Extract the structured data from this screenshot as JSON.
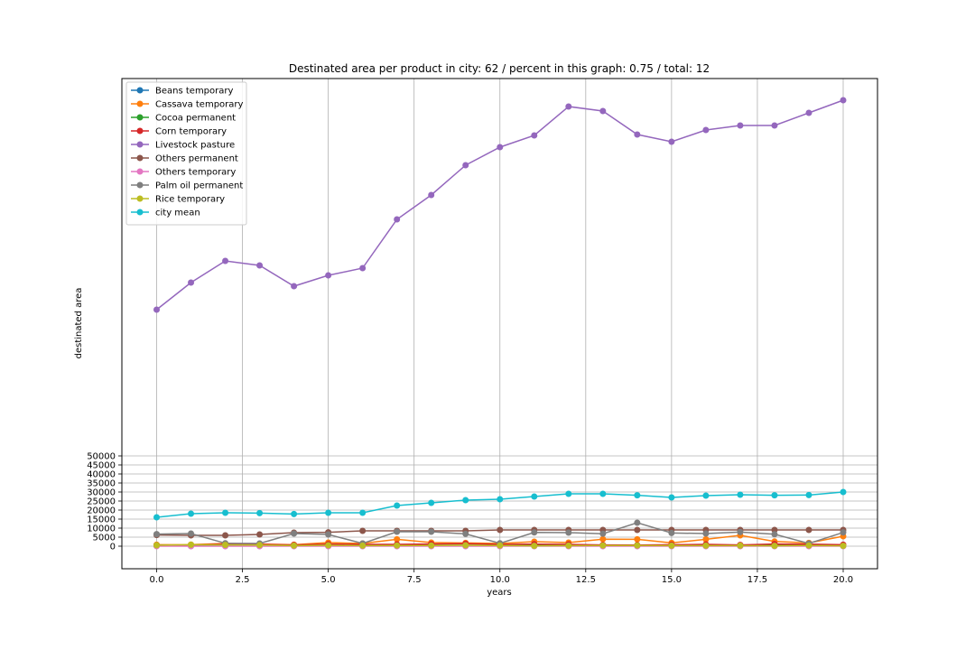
{
  "chart_data": {
    "type": "line",
    "title": "Destinated area per product in city: 62 / percent in this graph: 0.75 / total: 12",
    "xlabel": "years",
    "ylabel": "destinated area",
    "x": [
      0,
      1,
      2,
      3,
      4,
      5,
      6,
      7,
      8,
      9,
      10,
      11,
      12,
      13,
      14,
      15,
      16,
      17,
      18,
      19,
      20
    ],
    "xlim": [
      -1,
      21
    ],
    "ylim": [
      -12000,
      250000
    ],
    "xticks": [
      0.0,
      2.5,
      5.0,
      7.5,
      10.0,
      12.5,
      15.0,
      17.5,
      20.0
    ],
    "xtick_labels": [
      "0.0",
      "2.5",
      "5.0",
      "7.5",
      "10.0",
      "12.5",
      "15.0",
      "17.5",
      "20.0"
    ],
    "yticks": [
      0,
      5000,
      10000,
      15000,
      20000,
      25000,
      30000,
      35000,
      40000,
      45000,
      50000
    ],
    "ytick_labels": [
      "0",
      "5000",
      "10000",
      "15000",
      "20000",
      "25000",
      "30000",
      "35000",
      "40000",
      "45000",
      "50000"
    ],
    "grid": true,
    "legend_position": "top-left",
    "series": [
      {
        "name": "Beans temporary",
        "color": "#1f77b4",
        "values": [
          200,
          100,
          100,
          100,
          100,
          100,
          100,
          100,
          100,
          100,
          100,
          100,
          100,
          100,
          100,
          100,
          100,
          100,
          100,
          100,
          100
        ]
      },
      {
        "name": "Cassava temporary",
        "color": "#ff7f0e",
        "values": [
          800,
          900,
          1500,
          1200,
          800,
          2000,
          1500,
          3800,
          2000,
          1800,
          1500,
          2500,
          2000,
          3900,
          3800,
          1800,
          3800,
          6000,
          2600,
          1800,
          5500
        ]
      },
      {
        "name": "Cocoa permanent",
        "color": "#2ca02c",
        "values": [
          500,
          500,
          500,
          500,
          500,
          500,
          500,
          500,
          500,
          500,
          500,
          500,
          500,
          500,
          500,
          500,
          500,
          500,
          500,
          500,
          500
        ]
      },
      {
        "name": "Corn temporary",
        "color": "#d62728",
        "values": [
          500,
          600,
          1200,
          1000,
          700,
          1100,
          1000,
          1000,
          1200,
          1400,
          1000,
          1100,
          1000,
          700,
          600,
          800,
          1000,
          700,
          1200,
          1100,
          800
        ]
      },
      {
        "name": "Livestock pasture",
        "color": "#9467bd",
        "values": [
          131000,
          146000,
          158000,
          155500,
          144000,
          150000,
          154000,
          181000,
          194500,
          211000,
          221000,
          227500,
          243500,
          241000,
          228000,
          224000,
          230500,
          233000,
          233000,
          240000,
          247000
        ]
      },
      {
        "name": "Others permanent",
        "color": "#8c564b",
        "values": [
          6200,
          6000,
          6000,
          6500,
          7500,
          7700,
          8500,
          8500,
          8500,
          8500,
          9000,
          9000,
          9000,
          9000,
          9000,
          9000,
          9000,
          9000,
          9000,
          9000,
          9000
        ]
      },
      {
        "name": "Others temporary",
        "color": "#e377c2",
        "values": [
          0,
          0,
          0,
          0,
          0,
          0,
          0,
          0,
          0,
          0,
          0,
          0,
          0,
          0,
          0,
          0,
          0,
          0,
          0,
          0,
          0
        ]
      },
      {
        "name": "Palm oil permanent",
        "color": "#7f7f7f",
        "values": [
          6700,
          7000,
          1600,
          1500,
          7000,
          6500,
          1500,
          8000,
          8000,
          6800,
          1600,
          7600,
          7500,
          6900,
          13000,
          7300,
          7000,
          7800,
          6600,
          1500,
          7600
        ]
      },
      {
        "name": "Rice temporary",
        "color": "#bcbd22",
        "values": [
          500,
          800,
          700,
          600,
          300,
          500,
          300,
          400,
          400,
          500,
          400,
          200,
          300,
          400,
          400,
          300,
          300,
          300,
          200,
          400,
          200
        ]
      },
      {
        "name": "city mean",
        "color": "#17becf",
        "values": [
          16000,
          18000,
          18500,
          18300,
          17800,
          18500,
          18500,
          22500,
          24000,
          25500,
          26000,
          27500,
          29000,
          29000,
          28200,
          27000,
          28000,
          28500,
          28200,
          28300,
          30000
        ]
      }
    ]
  }
}
